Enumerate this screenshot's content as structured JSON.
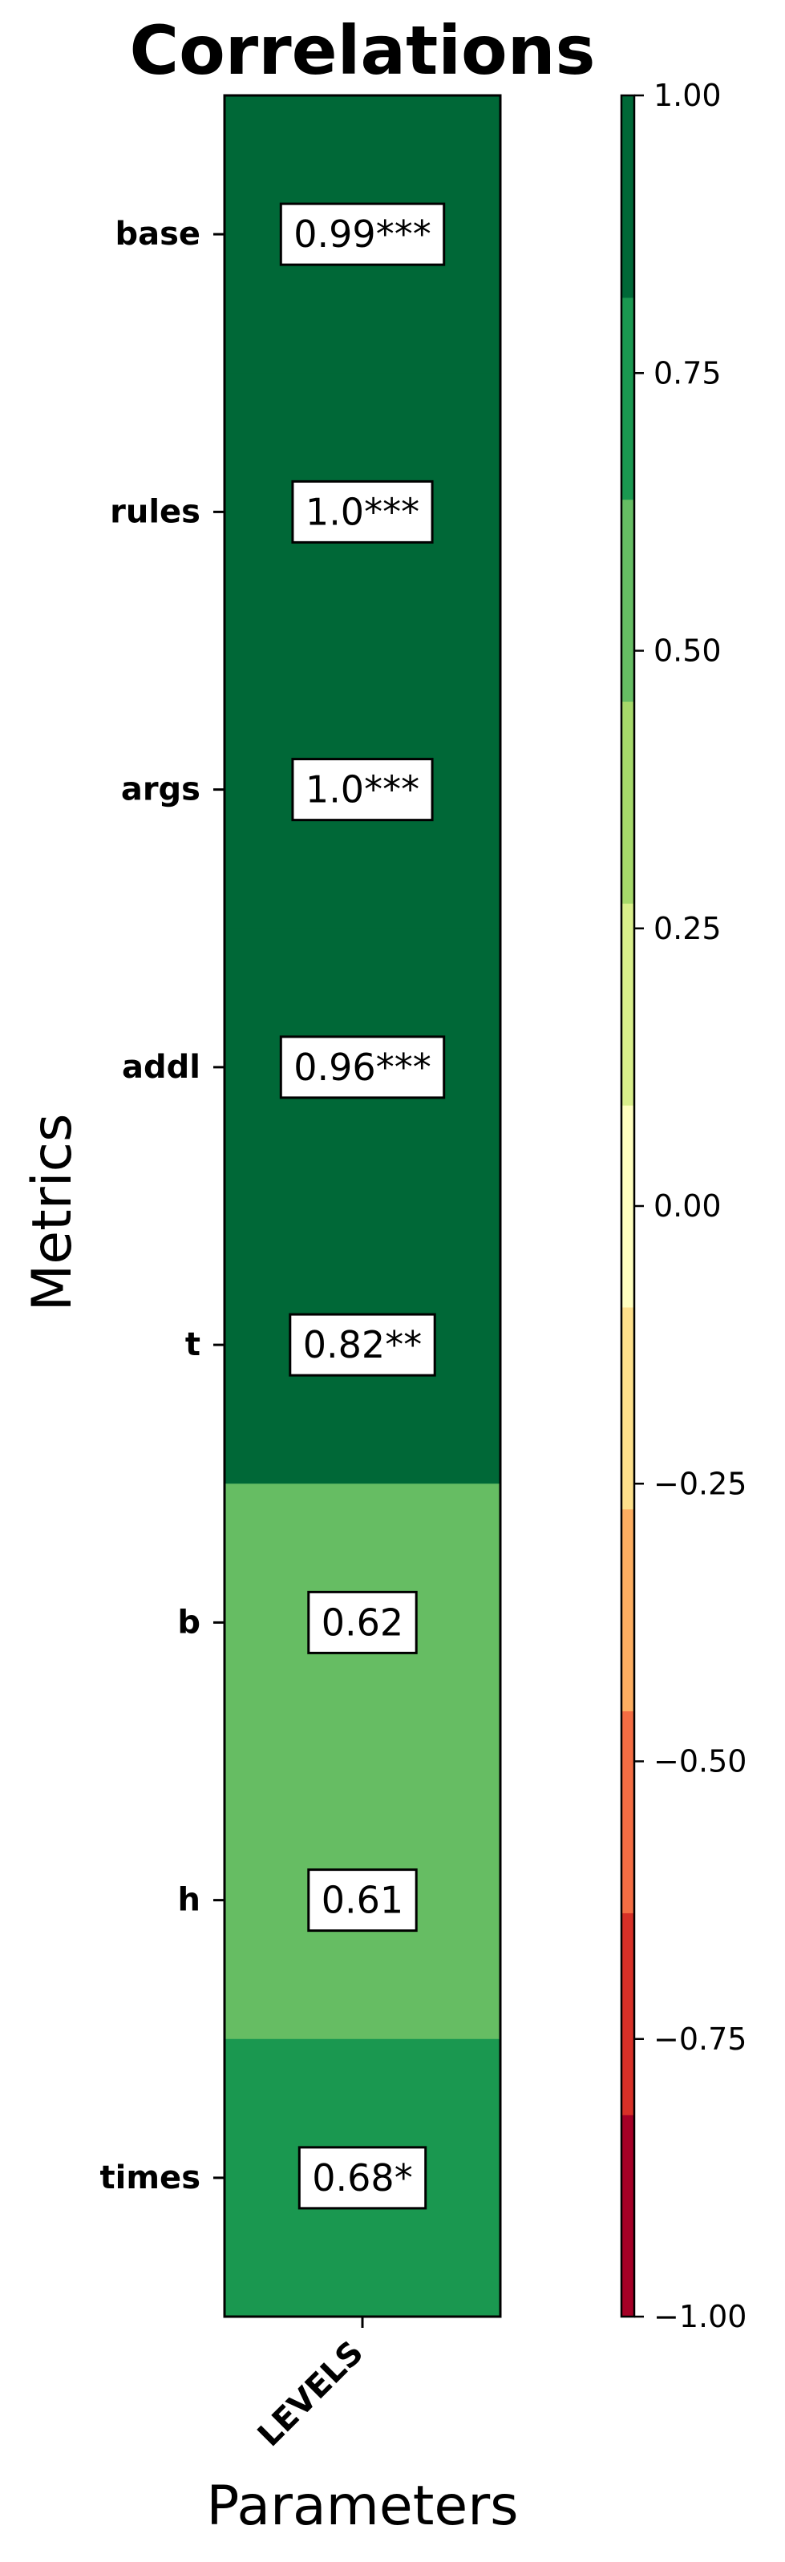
{
  "chart_data": {
    "type": "heatmap",
    "title": "Correlations",
    "xlabel": "Parameters",
    "ylabel": "Metrics",
    "columns": [
      "LEVELS"
    ],
    "rows": [
      "base",
      "rules",
      "args",
      "addl",
      "t",
      "b",
      "h",
      "times"
    ],
    "values": [
      0.99,
      1.0,
      1.0,
      0.96,
      0.82,
      0.62,
      0.61,
      0.68
    ],
    "annotations": [
      "0.99***",
      "1.0***",
      "1.0***",
      "0.96***",
      "0.82**",
      "0.62",
      "0.61",
      "0.68*"
    ],
    "colorbar": {
      "range": [
        -1.0,
        1.0
      ],
      "ticks": [
        1.0,
        0.75,
        0.5,
        0.25,
        0.0,
        -0.25,
        -0.5,
        -0.75,
        -1.0
      ],
      "tick_labels": [
        "1.00",
        "0.75",
        "0.50",
        "0.25",
        "0.00",
        "−0.25",
        "−0.50",
        "−0.75",
        "−1.00"
      ],
      "colors": [
        "#a50026",
        "#d73027",
        "#f46d43",
        "#fdae61",
        "#fee08b",
        "#ffffbf",
        "#d9ef8b",
        "#a6d96a",
        "#66bd63",
        "#1a9850",
        "#006837"
      ]
    }
  }
}
